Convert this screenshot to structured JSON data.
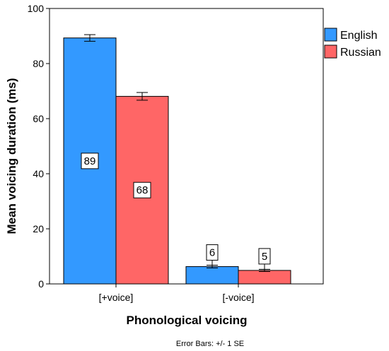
{
  "chart_data": {
    "type": "bar",
    "categories": [
      "[+voice]",
      "[-voice]"
    ],
    "series": [
      {
        "name": "English",
        "color": "#3399ff",
        "values": [
          89.3,
          6.3
        ],
        "error": [
          1.2,
          0.5
        ],
        "labels": [
          "89",
          "6"
        ]
      },
      {
        "name": "Russian",
        "color": "#ff6666",
        "values": [
          68.1,
          4.9
        ],
        "error": [
          1.4,
          0.4
        ],
        "labels": [
          "68",
          "5"
        ]
      }
    ],
    "xlabel": "Phonological voicing",
    "ylabel": "Mean voicing duration (ms)",
    "ylim": [
      0,
      100
    ],
    "yticks": [
      0,
      20,
      40,
      60,
      80,
      100
    ],
    "footnote": "Error Bars: +/- 1 SE",
    "grid": false,
    "legend_position": "top-right"
  }
}
